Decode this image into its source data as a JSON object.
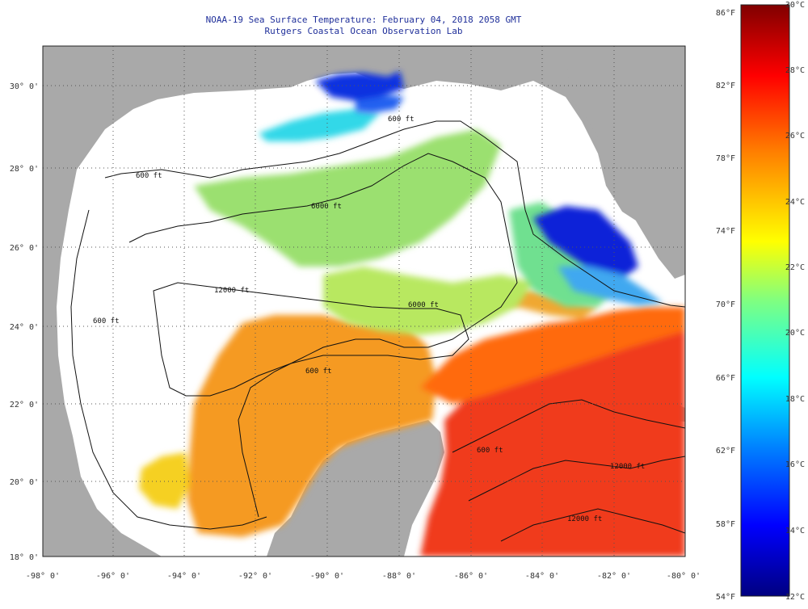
{
  "header": {
    "line1": "NOAA-19 Sea Surface Temperature:  February 04, 2018 2058 GMT",
    "line2": "Rutgers Coastal Ocean Observation Lab"
  },
  "map": {
    "lat_labels": [
      "30° 0'",
      "28° 0'",
      "26° 0'",
      "24° 0'",
      "22° 0'",
      "20° 0'",
      "18° 0'"
    ],
    "lon_labels": [
      "-98° 0'",
      "-96° 0'",
      "-94° 0'",
      "-92° 0'",
      "-90° 0'",
      "-88° 0'",
      "-86° 0'",
      "-84° 0'",
      "-82° 0'",
      "-80° 0'"
    ],
    "contour_labels": [
      "600 ft",
      "600 ft",
      "6000 ft",
      "12000 ft",
      "6000 ft",
      "600 ft",
      "600 ft",
      "600 ft",
      "12000 ft",
      "12000 ft"
    ],
    "colors": {
      "land": "#a9a9a9",
      "cloud": "#ffffff",
      "grid": "#555555"
    }
  },
  "colorbar": {
    "fahrenheit_labels": [
      "86°F",
      "82°F",
      "78°F",
      "74°F",
      "70°F",
      "66°F",
      "62°F",
      "58°F",
      "54°F"
    ],
    "celsius_labels": [
      "30°C",
      "28°C",
      "26°C",
      "24°C",
      "22°C",
      "20°C",
      "18°C",
      "16°C",
      "14°C",
      "12°C"
    ],
    "range_c": [
      12,
      30
    ],
    "range_f": [
      54,
      86
    ],
    "stops": [
      "#000080",
      "#0000ff",
      "#0080ff",
      "#00ffff",
      "#80ff80",
      "#ffff00",
      "#ff8000",
      "#ff0000",
      "#800000"
    ]
  }
}
